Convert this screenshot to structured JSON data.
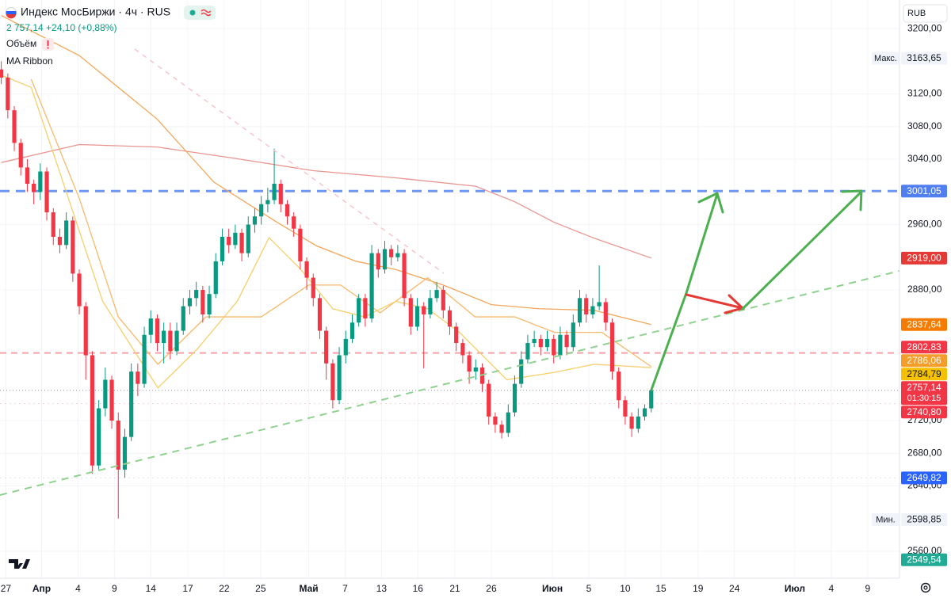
{
  "chart_data": {
    "type": "candlestick",
    "title": "Индекс МосБиржи · 4ч · RUS",
    "quote": "2 757,14 +24,10 (+0,88%)",
    "indicators": [
      "Объём",
      "MA Ribbon"
    ],
    "currency": "RUB",
    "up_color": "#089981",
    "down_color": "#f23645",
    "open": [
      3150,
      3140,
      3100,
      3060,
      3030,
      3010,
      3000,
      3025,
      2975,
      2945,
      2935,
      2965,
      2900,
      2860,
      2800,
      2665,
      2735,
      2770,
      2720,
      2660,
      2700,
      2780,
      2765,
      2825,
      2845,
      2815,
      2830,
      2805,
      2830,
      2860,
      2870,
      2880,
      2850,
      2875,
      2915,
      2945,
      2935,
      2950,
      2925,
      2960,
      2970,
      2985,
      2990,
      3010,
      2985,
      2970,
      2955,
      2915,
      2895,
      2870,
      2830,
      2790,
      2745,
      2800,
      2820,
      2840,
      2870,
      2845,
      2925,
      2905,
      2930,
      2920,
      2925,
      2870,
      2835,
      2860,
      2850,
      2870,
      2880,
      2855,
      2835,
      2815,
      2800,
      2780,
      2785,
      2765,
      2725,
      2715,
      2705,
      2730,
      2765,
      2795,
      2815,
      2820,
      2810,
      2820,
      2800,
      2825,
      2810,
      2840,
      2870,
      2850,
      2860,
      2865,
      2840,
      2780,
      2745,
      2725,
      2710,
      2725,
      2735
    ],
    "high": [
      3160,
      3145,
      3105,
      3065,
      3040,
      3015,
      3035,
      3030,
      2980,
      2955,
      2975,
      2970,
      2905,
      2865,
      2805,
      2745,
      2785,
      2775,
      2730,
      2710,
      2790,
      2790,
      2835,
      2855,
      2850,
      2840,
      2840,
      2840,
      2870,
      2880,
      2890,
      2885,
      2885,
      2925,
      2955,
      2955,
      2960,
      2955,
      2970,
      2980,
      2995,
      3005,
      3053,
      3015,
      2990,
      2975,
      2960,
      2920,
      2900,
      2875,
      2835,
      2795,
      2810,
      2830,
      2850,
      2875,
      2875,
      2935,
      2930,
      2940,
      2935,
      2935,
      2930,
      2875,
      2870,
      2865,
      2880,
      2890,
      2885,
      2860,
      2840,
      2820,
      2805,
      2795,
      2790,
      2770,
      2730,
      2720,
      2740,
      2775,
      2805,
      2825,
      2830,
      2825,
      2830,
      2825,
      2835,
      2830,
      2850,
      2880,
      2875,
      2870,
      2910,
      2870,
      2845,
      2785,
      2750,
      2730,
      2735,
      2740,
      2760
    ],
    "low": [
      3132,
      3090,
      3050,
      3020,
      3000,
      2985,
      2990,
      2965,
      2935,
      2925,
      2930,
      2890,
      2850,
      2770,
      2655,
      2660,
      2725,
      2710,
      2600,
      2650,
      2695,
      2750,
      2760,
      2815,
      2805,
      2790,
      2795,
      2800,
      2825,
      2850,
      2860,
      2840,
      2845,
      2870,
      2910,
      2925,
      2930,
      2915,
      2920,
      2950,
      2960,
      2975,
      2985,
      2975,
      2960,
      2945,
      2905,
      2880,
      2860,
      2820,
      2770,
      2735,
      2740,
      2790,
      2815,
      2835,
      2835,
      2840,
      2895,
      2900,
      2910,
      2915,
      2860,
      2825,
      2830,
      2784,
      2845,
      2865,
      2845,
      2825,
      2805,
      2790,
      2765,
      2770,
      2755,
      2715,
      2705,
      2698,
      2700,
      2725,
      2760,
      2790,
      2810,
      2800,
      2805,
      2790,
      2795,
      2800,
      2805,
      2835,
      2840,
      2845,
      2855,
      2830,
      2770,
      2735,
      2715,
      2700,
      2705,
      2720,
      2730
    ],
    "close": [
      3140,
      3100,
      3060,
      3030,
      3010,
      3000,
      3025,
      2975,
      2945,
      2935,
      2965,
      2900,
      2860,
      2800,
      2665,
      2735,
      2770,
      2720,
      2660,
      2700,
      2780,
      2765,
      2825,
      2845,
      2815,
      2830,
      2805,
      2830,
      2860,
      2870,
      2880,
      2850,
      2875,
      2915,
      2945,
      2935,
      2950,
      2925,
      2960,
      2970,
      2985,
      2990,
      3010,
      2985,
      2970,
      2955,
      2915,
      2895,
      2870,
      2830,
      2790,
      2745,
      2800,
      2820,
      2840,
      2870,
      2845,
      2925,
      2905,
      2930,
      2920,
      2925,
      2870,
      2835,
      2860,
      2850,
      2870,
      2880,
      2855,
      2835,
      2815,
      2800,
      2780,
      2785,
      2765,
      2725,
      2715,
      2705,
      2730,
      2765,
      2795,
      2815,
      2820,
      2810,
      2820,
      2800,
      2825,
      2810,
      2840,
      2870,
      2850,
      2860,
      2865,
      2840,
      2780,
      2745,
      2725,
      2710,
      2725,
      2735,
      2757.14
    ],
    "ma_lines": [
      {
        "color": "#e8958f",
        "x": [
          0,
          12,
          24,
          36,
          48,
          61,
          73,
          79,
          85,
          91,
          100
        ],
        "values": [
          3036,
          3058,
          3055,
          3041,
          3026,
          3017,
          3007,
          2988,
          2963,
          2944,
          2919
        ]
      },
      {
        "color": "#f2a65a",
        "x": [
          0,
          12,
          24,
          32.7,
          42.4,
          48.5,
          54.6,
          60.7,
          68,
          75.4,
          82.7,
          91.2,
          100
        ],
        "values": [
          3216,
          3167,
          3089,
          3012,
          2963,
          2934,
          2915,
          2905,
          2886,
          2862,
          2857,
          2855,
          2837.64
        ]
      },
      {
        "color": "#f7b96b",
        "x": [
          4.6,
          12,
          18,
          24.1,
          31.5,
          40,
          47.3,
          52.2,
          58.3,
          65.6,
          72.9,
          79,
          85.1,
          92.4,
          100
        ],
        "values": [
          3138,
          2992,
          2847,
          2789,
          2847,
          2847,
          2886,
          2886,
          2852,
          2895,
          2847,
          2847,
          2828,
          2828,
          2786.06
        ]
      },
      {
        "color": "#f5cf6b",
        "x": [
          0,
          4.6,
          9.5,
          15.6,
          24.1,
          30.2,
          36.3,
          41.2,
          46.1,
          51,
          55.9,
          60.7,
          65.6,
          70.5,
          77.8,
          85.1,
          91.2,
          100
        ],
        "values": [
          3143,
          3128,
          3012,
          2866,
          2760,
          2808,
          2866,
          2944,
          2905,
          2857,
          2847,
          2866,
          2857,
          2828,
          2770,
          2779,
          2789,
          2784.79
        ]
      }
    ],
    "xlim": [
      -0.2,
      138.2
    ],
    "xticks": [
      {
        "value": 0.7,
        "label": "27"
      },
      {
        "value": 6.2,
        "label": "Апр"
      },
      {
        "value": 11.8,
        "label": "4"
      },
      {
        "value": 17.4,
        "label": "9"
      },
      {
        "value": 23,
        "label": "14"
      },
      {
        "value": 28.7,
        "label": "17"
      },
      {
        "value": 34.3,
        "label": "22"
      },
      {
        "value": 39.9,
        "label": "25"
      },
      {
        "value": 47.3,
        "label": "Май"
      },
      {
        "value": 52.9,
        "label": "7"
      },
      {
        "value": 58.5,
        "label": "13"
      },
      {
        "value": 64.1,
        "label": "16"
      },
      {
        "value": 69.8,
        "label": "21"
      },
      {
        "value": 75.4,
        "label": "26"
      },
      {
        "value": 84.8,
        "label": "Июн"
      },
      {
        "value": 90.4,
        "label": "5"
      },
      {
        "value": 96,
        "label": "10"
      },
      {
        "value": 101.5,
        "label": "15"
      },
      {
        "value": 107.2,
        "label": "19"
      },
      {
        "value": 112.8,
        "label": "24"
      },
      {
        "value": 122.1,
        "label": "Июл"
      },
      {
        "value": 127.7,
        "label": "4"
      },
      {
        "value": 133.3,
        "label": "9"
      }
    ],
    "ylim": [
      2527,
      3235
    ],
    "yticks": [
      {
        "value": 3200,
        "label": "3200,00"
      },
      {
        "value": 3120,
        "label": "3120,00"
      },
      {
        "value": 3080,
        "label": "3080,00"
      },
      {
        "value": 3040,
        "label": "3040,00"
      },
      {
        "value": 2960,
        "label": "2960,00"
      },
      {
        "value": 2880,
        "label": "2880,00"
      },
      {
        "value": 2720,
        "label": "2720,00"
      },
      {
        "value": 2680,
        "label": "2680,00"
      },
      {
        "value": 2640,
        "label": "2640,00"
      },
      {
        "value": 2560,
        "label": "2560,00"
      }
    ],
    "price_tags": [
      {
        "value": 3163.65,
        "label": "3163,65",
        "prefix": "Макс.",
        "color": "#f0f3fa",
        "text_color": "#131722"
      },
      {
        "value": 3001.05,
        "label": "3001,05",
        "color": "#4f7ff0",
        "text_color": "#ffffff",
        "line": "thick-dashed",
        "line_color": "#6f96f2"
      },
      {
        "value": 2919,
        "label": "2919,00",
        "color": "#e53935",
        "text_color": "#ffffff"
      },
      {
        "value": 2837.64,
        "label": "2837,64",
        "color": "#f57c00",
        "text_color": "#ffffff"
      },
      {
        "value": 2802.83,
        "label": "2802,83",
        "color": "#f23645",
        "text_color": "#ffffff",
        "line": "dashed",
        "line_color": "#f5a3aa"
      },
      {
        "value": 2786.06,
        "label": "2786,06",
        "color": "#f59d2a",
        "text_color": "#ffffff"
      },
      {
        "value": 2784.79,
        "label": "2784,79",
        "color": "#f5c000",
        "text_color": "#131722"
      },
      {
        "value": 2757.14,
        "label": "2757,14",
        "timer": "01:30:15",
        "color": "#f23645",
        "text_color": "#ffffff",
        "line": "dotted",
        "line_color": "#9598a1"
      },
      {
        "value": 2740.8,
        "label": "2740,80",
        "color": "#f23645",
        "text_color": "#ffffff",
        "line": "faint",
        "line_color": "#fbd3d6"
      },
      {
        "value": 2649.82,
        "label": "2649,82",
        "color": "#2962ff",
        "text_color": "#ffffff",
        "line": "faint",
        "line_color": "#e0e3eb"
      },
      {
        "value": 2598.85,
        "label": "2598,85",
        "prefix": "Мин.",
        "color": "#f0f3fa",
        "text_color": "#131722"
      },
      {
        "value": 2549.54,
        "label": "2549,54",
        "color": "#22ab94",
        "text_color": "#ffffff"
      }
    ]
  }
}
